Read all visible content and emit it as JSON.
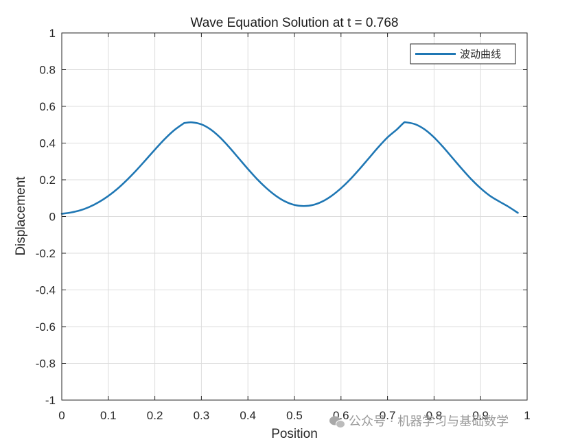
{
  "chart_data": {
    "type": "line",
    "title": "Wave Equation Solution at t = 0.768",
    "xlabel": "Position",
    "ylabel": "Displacement",
    "xlim": [
      0,
      1
    ],
    "ylim": [
      -1,
      1
    ],
    "xticks": [
      0,
      0.1,
      0.2,
      0.3,
      0.4,
      0.5,
      0.6,
      0.7,
      0.8,
      0.9,
      1
    ],
    "xtick_labels": [
      "0",
      "0.1",
      "0.2",
      "0.3",
      "0.4",
      "0.5",
      "0.6",
      "0.7",
      "0.8",
      "0.9",
      "1"
    ],
    "yticks": [
      1,
      0.8,
      0.6,
      0.4,
      0.2,
      0,
      -0.2,
      -0.4,
      -0.6,
      -0.8,
      -1
    ],
    "ytick_labels": [
      "1",
      "0.8",
      "0.6",
      "0.4",
      "0.2",
      "0",
      "-0.2",
      "-0.4",
      "-0.6",
      "-0.8",
      "-1"
    ],
    "grid": true,
    "legend_position": "top-right",
    "series": [
      {
        "name": "波动曲线",
        "color": "#1f77b4",
        "x": [
          0,
          0.02,
          0.04,
          0.06,
          0.08,
          0.1,
          0.12,
          0.14,
          0.16,
          0.18,
          0.2,
          0.22,
          0.24,
          0.26,
          0.2653,
          0.28,
          0.3,
          0.32,
          0.34,
          0.36,
          0.38,
          0.4,
          0.42,
          0.44,
          0.46,
          0.48,
          0.5,
          0.52,
          0.54,
          0.56,
          0.58,
          0.6,
          0.62,
          0.64,
          0.66,
          0.68,
          0.7,
          0.72,
          0.7347,
          0.74,
          0.76,
          0.78,
          0.8,
          0.82,
          0.84,
          0.86,
          0.88,
          0.9,
          0.92,
          0.94,
          0.96,
          0.98
        ],
        "y": [
          0.015,
          0.022,
          0.034,
          0.053,
          0.079,
          0.112,
          0.152,
          0.199,
          0.251,
          0.307,
          0.364,
          0.419,
          0.467,
          0.504,
          0.51,
          0.513,
          0.502,
          0.474,
          0.431,
          0.377,
          0.318,
          0.259,
          0.203,
          0.154,
          0.113,
          0.082,
          0.063,
          0.057,
          0.063,
          0.082,
          0.113,
          0.154,
          0.203,
          0.259,
          0.318,
          0.377,
          0.431,
          0.474,
          0.51,
          0.513,
          0.502,
          0.474,
          0.431,
          0.377,
          0.318,
          0.259,
          0.203,
          0.154,
          0.113,
          0.082,
          0.053,
          0.02
        ]
      }
    ]
  },
  "watermark": {
    "icon": "wechat-icon",
    "text": "公众号 · 机器学习与基础数学"
  }
}
